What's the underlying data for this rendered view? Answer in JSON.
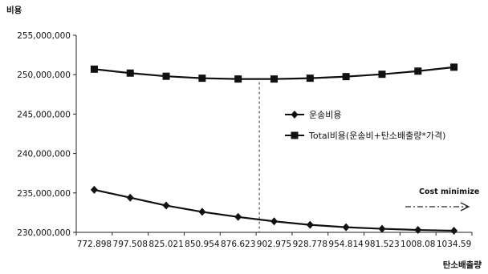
{
  "chart_data": {
    "type": "line",
    "ylabel": "비용",
    "xlabel": "탄소배출량",
    "ylim": [
      230000000,
      255000000
    ],
    "yticks": [
      230000000,
      235000000,
      240000000,
      245000000,
      250000000,
      255000000
    ],
    "ytick_labels": [
      "230,000,000",
      "235,000,000",
      "240,000,000",
      "245,000,000",
      "250,000,000",
      "255,000,000"
    ],
    "categories": [
      "772.898",
      "797.508",
      "825.021",
      "850.954",
      "876.623",
      "902.975",
      "928.778",
      "954.814",
      "981.523",
      "1008.08",
      "1034.59"
    ],
    "series": [
      {
        "name": "운송비용",
        "marker": "diamond",
        "color": "#111111",
        "values": [
          235400000,
          234400000,
          233400000,
          232600000,
          231950000,
          231400000,
          230950000,
          230650000,
          230450000,
          230300000,
          230200000
        ]
      },
      {
        "name": "Total비용(운송비+탄소배출량*가격)",
        "marker": "square",
        "color": "#111111",
        "values": [
          250700000,
          250200000,
          249800000,
          249550000,
          249450000,
          249450000,
          249550000,
          249750000,
          250050000,
          250450000,
          250950000
        ]
      }
    ],
    "reference_line": {
      "category": "902.975",
      "style": "dashed"
    },
    "annotation": {
      "text": "Cost minimize",
      "style": "dash-dot-arrow"
    },
    "grid": false,
    "legend_position": "center-right"
  }
}
